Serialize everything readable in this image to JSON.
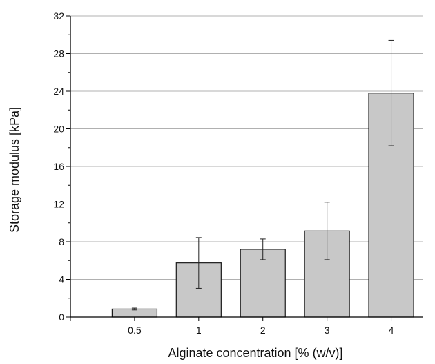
{
  "chart_data": {
    "type": "bar",
    "xlabel": "Alginate concentration [% (w/v)]",
    "ylabel": "Storage modulus [kPa]",
    "categories": [
      "0.5",
      "1",
      "2",
      "3",
      "4"
    ],
    "values": [
      0.85,
      5.75,
      7.2,
      9.15,
      23.8
    ],
    "error_low": [
      0.75,
      3.05,
      6.1,
      6.1,
      18.2
    ],
    "error_high": [
      0.95,
      8.45,
      8.3,
      12.2,
      29.4
    ],
    "ylim": [
      0,
      32
    ],
    "yticks": [
      "0",
      "4",
      "8",
      "12",
      "16",
      "20",
      "24",
      "28",
      "32"
    ],
    "grid": "horizontal",
    "colors": {
      "bar_fill": "#c8c8c8",
      "bar_stroke": "#1a1a1a",
      "grid": "#b0b0b0",
      "axis": "#000000"
    }
  }
}
